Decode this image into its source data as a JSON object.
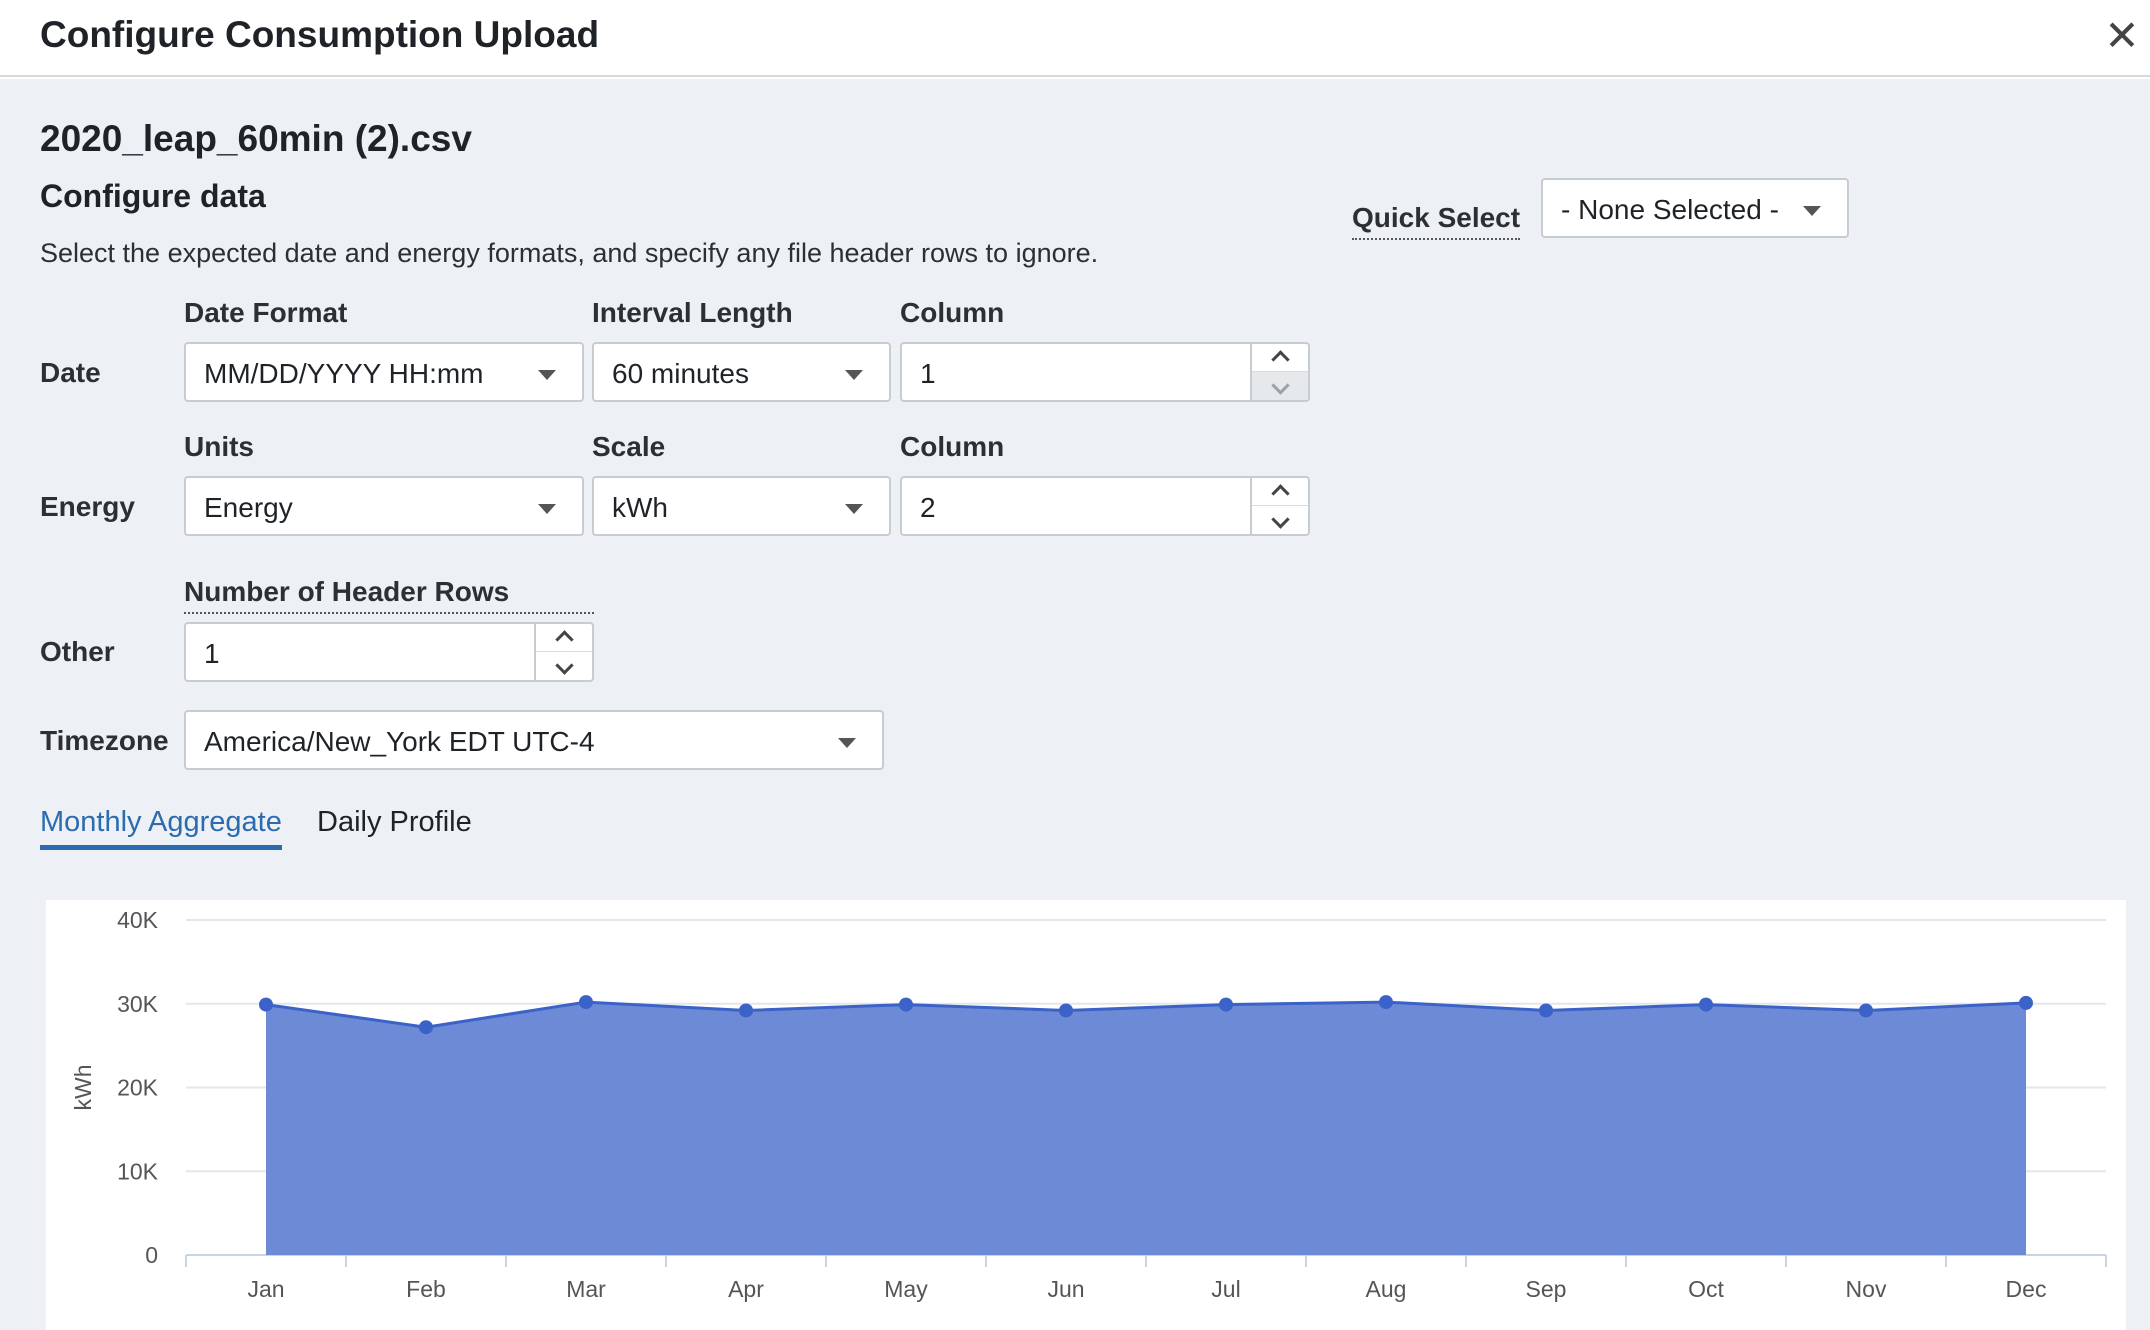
{
  "dialog": {
    "title": "Configure Consumption Upload",
    "close_icon": "close-icon"
  },
  "file": {
    "name": "2020_leap_60min (2).csv"
  },
  "configure": {
    "title": "Configure data",
    "description": "Select the expected date and energy formats, and specify any file header rows to ignore."
  },
  "quick_select": {
    "label": "Quick Select",
    "value": "- None Selected -"
  },
  "date_row": {
    "label": "Date",
    "format_label": "Date Format",
    "format_value": "MM/DD/YYYY HH:mm",
    "interval_label": "Interval Length",
    "interval_value": "60 minutes",
    "column_label": "Column",
    "column_value": "1"
  },
  "energy_row": {
    "label": "Energy",
    "units_label": "Units",
    "units_value": "Energy",
    "scale_label": "Scale",
    "scale_value": "kWh",
    "column_label": "Column",
    "column_value": "2"
  },
  "other_row": {
    "label": "Other",
    "header_rows_label": "Number of Header Rows",
    "header_rows_value": "1"
  },
  "timezone": {
    "label": "Timezone",
    "value": "America/New_York EDT UTC-4"
  },
  "tabs": [
    {
      "label": "Monthly Aggregate",
      "active": true
    },
    {
      "label": "Daily Profile",
      "active": false
    }
  ],
  "colors": {
    "accent": "#2b6cb0",
    "chart_fill": "#6d8ad6",
    "chart_line": "#3b62c8"
  },
  "chart_data": {
    "type": "area",
    "categories": [
      "Jan",
      "Feb",
      "Mar",
      "Apr",
      "May",
      "Jun",
      "Jul",
      "Aug",
      "Sep",
      "Oct",
      "Nov",
      "Dec"
    ],
    "values": [
      29900,
      27200,
      30200,
      29200,
      29900,
      29200,
      29900,
      30200,
      29200,
      29900,
      29200,
      30100
    ],
    "ylabel": "kWh",
    "yticks": [
      "0",
      "10K",
      "20K",
      "30K",
      "40K"
    ],
    "ylim": [
      0,
      40000
    ],
    "grid": true,
    "legend": false
  }
}
